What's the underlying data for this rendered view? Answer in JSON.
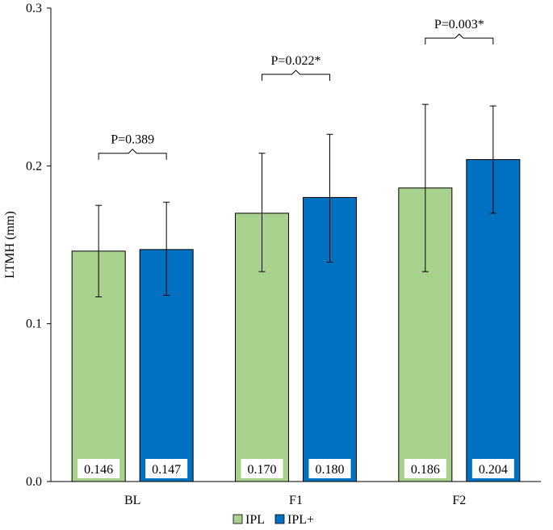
{
  "chart_data": {
    "type": "bar",
    "title": "",
    "xlabel": "",
    "ylabel": "LTMH (mm)",
    "ylim": [
      0,
      0.3
    ],
    "yticks": [
      "0.0",
      "0.1",
      "0.2",
      "0.3"
    ],
    "categories": [
      "BL",
      "F1",
      "F2"
    ],
    "series": [
      {
        "name": "IPL",
        "color": "#a9d18e",
        "values": [
          0.146,
          0.17,
          0.186
        ],
        "labels": [
          "0.146",
          "0.170",
          "0.186"
        ],
        "error_low": [
          0.117,
          0.133,
          0.133
        ],
        "error_high": [
          0.175,
          0.208,
          0.239
        ]
      },
      {
        "name": "IPL+",
        "color": "#0070c0",
        "values": [
          0.147,
          0.18,
          0.204
        ],
        "labels": [
          "0.147",
          "0.180",
          "0.204"
        ],
        "error_low": [
          0.118,
          0.139,
          0.17
        ],
        "error_high": [
          0.177,
          0.22,
          0.238
        ]
      }
    ],
    "annotations": [
      {
        "text": "P=0.389",
        "category": "BL",
        "level": 0.208
      },
      {
        "text": "P=0.022*",
        "category": "F1",
        "level": 0.258
      },
      {
        "text": "P=0.003*",
        "category": "F2",
        "level": 0.281
      }
    ],
    "legend": {
      "position": "bottom-center",
      "entries": [
        "IPL",
        "IPL+"
      ]
    },
    "grid": false
  }
}
